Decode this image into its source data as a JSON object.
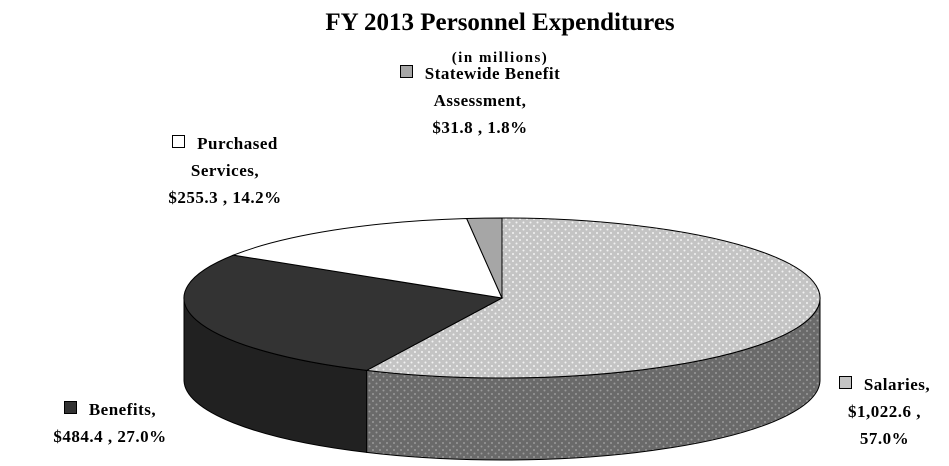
{
  "chart_data": {
    "type": "pie3d",
    "title": "FY 2013 Personnel Expenditures",
    "subtitle": "(in millions)",
    "categories": [
      "Salaries,",
      "Benefits,",
      "Purchased Services,",
      "Statewide Benefit Assessment,"
    ],
    "values": [
      1022.6,
      484.4,
      255.3,
      31.8
    ],
    "value_labels": [
      "$1,022.6 ,",
      "$484.4 ,",
      "$255.3 ,",
      "$31.8 ,"
    ],
    "percentages": [
      57.0,
      27.0,
      14.2,
      1.8
    ],
    "percentage_labels": [
      "57.0%",
      "27.0%",
      "14.2%",
      "1.8%"
    ],
    "colors": [
      "#c4c4c4",
      "#333333",
      "#ffffff",
      "#a6a6a6"
    ],
    "patterns": [
      "dots",
      null,
      null,
      null
    ],
    "start_angle": 0,
    "direction": "clockwise"
  }
}
